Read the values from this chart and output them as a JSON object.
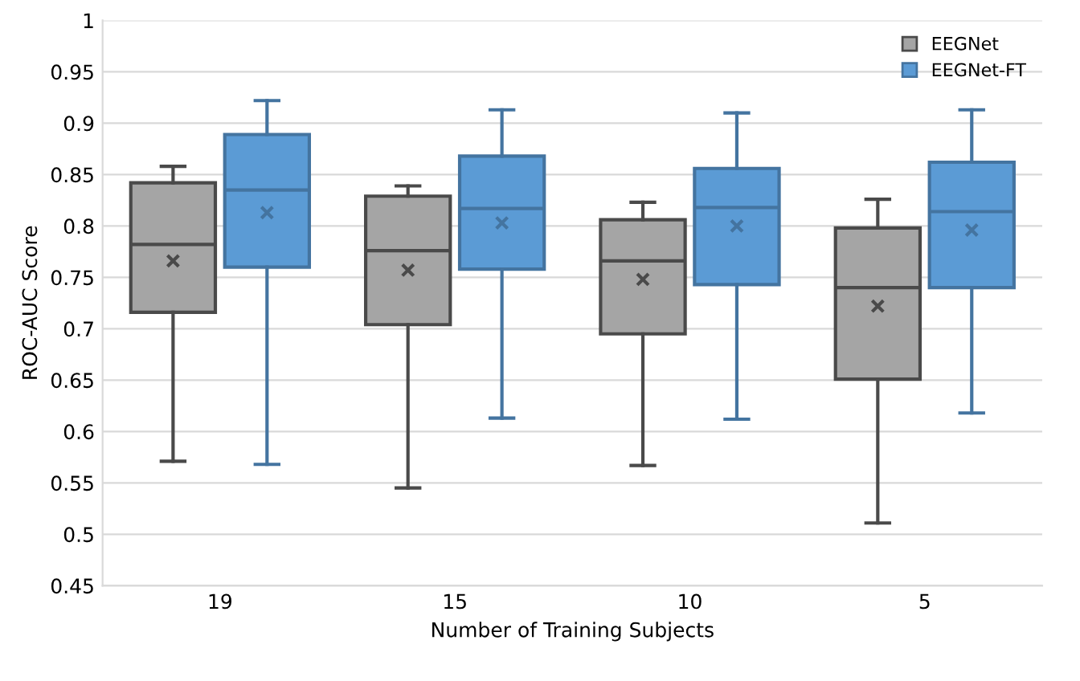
{
  "chart_data": {
    "type": "box",
    "xlabel": "Number of Training Subjects",
    "ylabel": "ROC-AUC Score",
    "categories": [
      "19",
      "15",
      "10",
      "5"
    ],
    "ylim": [
      0.45,
      1
    ],
    "yticks": [
      0.45,
      0.5,
      0.55,
      0.6,
      0.65,
      0.7,
      0.75,
      0.8,
      0.85,
      0.9,
      0.95,
      1
    ],
    "grid": "y",
    "legend": "top right",
    "marker": "cross",
    "series": [
      {
        "name": "EEGNet",
        "color": "#a5a5a5",
        "boxes": [
          {
            "low": 0.571,
            "q1": 0.716,
            "median": 0.782,
            "q3": 0.842,
            "high": 0.858,
            "mean": 0.766
          },
          {
            "low": 0.545,
            "q1": 0.704,
            "median": 0.776,
            "q3": 0.829,
            "high": 0.839,
            "mean": 0.757
          },
          {
            "low": 0.567,
            "q1": 0.695,
            "median": 0.766,
            "q3": 0.806,
            "high": 0.823,
            "mean": 0.748
          },
          {
            "low": 0.511,
            "q1": 0.651,
            "median": 0.74,
            "q3": 0.798,
            "high": 0.826,
            "mean": 0.722
          }
        ]
      },
      {
        "name": "EEGNet-FT",
        "color": "#5b9bd5",
        "boxes": [
          {
            "low": 0.568,
            "q1": 0.76,
            "median": 0.835,
            "q3": 0.889,
            "high": 0.922,
            "mean": 0.813
          },
          {
            "low": 0.613,
            "q1": 0.758,
            "median": 0.817,
            "q3": 0.868,
            "high": 0.913,
            "mean": 0.803
          },
          {
            "low": 0.612,
            "q1": 0.743,
            "median": 0.818,
            "q3": 0.856,
            "high": 0.91,
            "mean": 0.8
          },
          {
            "low": 0.618,
            "q1": 0.74,
            "median": 0.814,
            "q3": 0.862,
            "high": 0.913,
            "mean": 0.796
          }
        ]
      }
    ]
  }
}
